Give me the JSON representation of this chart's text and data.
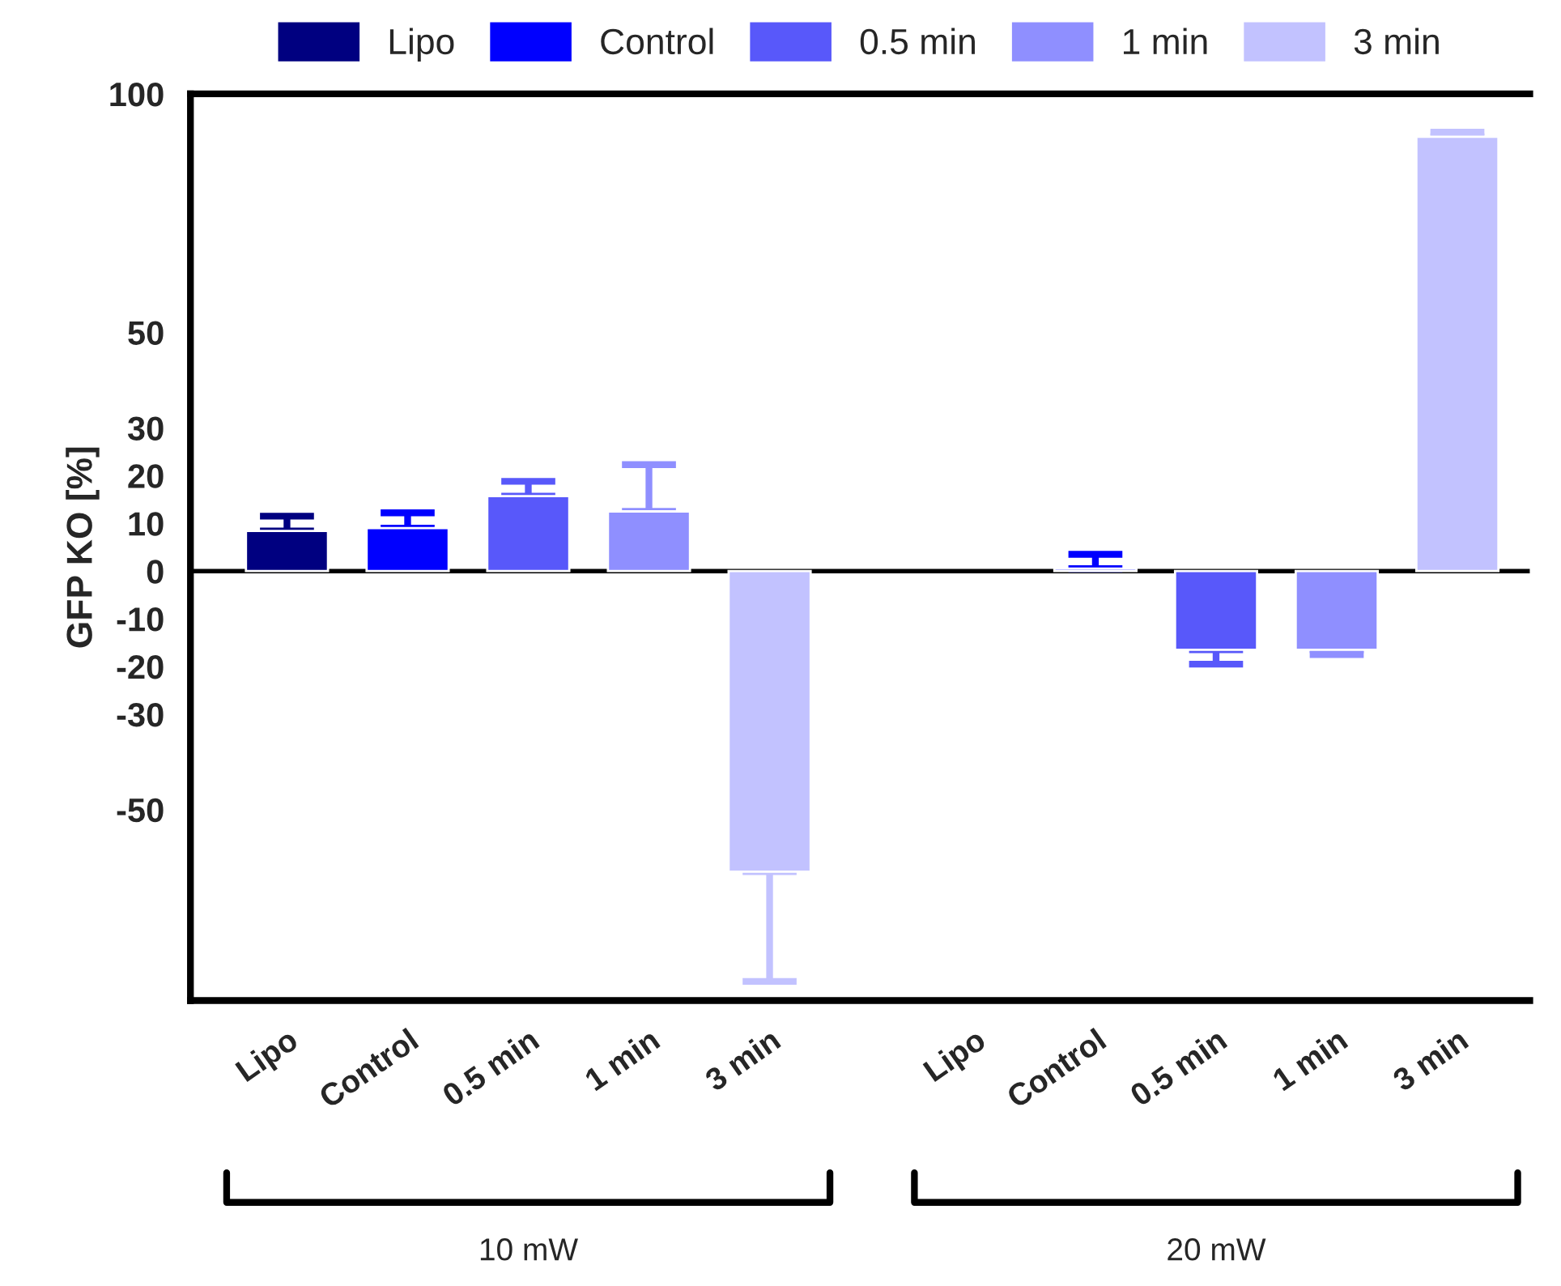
{
  "chart_data": {
    "type": "bar",
    "ylabel": "GFP KO [%]",
    "categories": [
      "Lipo",
      "Control",
      "0.5 min",
      "1 min",
      "3 min",
      "Lipo",
      "Control",
      "0.5 min",
      "1 min",
      "3 min"
    ],
    "series": [
      {
        "name": "Lipo",
        "color": "#000080",
        "values": [
          8.4,
          null,
          null,
          null,
          null,
          null,
          null,
          null,
          null,
          null
        ],
        "errors": [
          [
            8.4,
            11.5
          ],
          null,
          null,
          null,
          null,
          null,
          null,
          null,
          null,
          null
        ]
      },
      {
        "name": "Control",
        "color": "#0000ff",
        "values": [
          null,
          9,
          null,
          null,
          null,
          null,
          0.5,
          null,
          null,
          null
        ],
        "errors": [
          null,
          [
            9,
            12.2
          ],
          null,
          null,
          null,
          null,
          [
            0.5,
            3.5
          ],
          null,
          null,
          null
        ]
      },
      {
        "name": "0.5 min",
        "color": "#5858fa",
        "values": [
          null,
          null,
          15.7,
          null,
          null,
          null,
          null,
          -16.5,
          null,
          null
        ],
        "errors": [
          null,
          null,
          [
            15.7,
            18.8
          ],
          null,
          null,
          null,
          null,
          [
            -19.5,
            -16.5
          ],
          null,
          null
        ]
      },
      {
        "name": "1 min",
        "color": "#8f8fff",
        "values": [
          null,
          null,
          null,
          12.5,
          null,
          null,
          null,
          null,
          -16.5,
          null
        ],
        "errors": [
          null,
          null,
          null,
          [
            12.5,
            22.3
          ],
          null,
          null,
          null,
          null,
          [
            -17.5,
            -16.5
          ],
          null
        ]
      },
      {
        "name": "3 min",
        "color": "#c2c2ff",
        "values": [
          null,
          null,
          null,
          null,
          -63,
          null,
          null,
          null,
          null,
          91
        ],
        "errors": [
          null,
          null,
          null,
          null,
          [
            -86,
            -63
          ],
          null,
          null,
          null,
          null,
          [
            91,
            92
          ]
        ]
      }
    ],
    "ylim": [
      -90,
      100
    ],
    "yticks": [
      -50,
      -30,
      -20,
      -10,
      0,
      10,
      20,
      30,
      50,
      100
    ],
    "ref_lines": [
      {
        "axis": "y",
        "value": 0,
        "color": "#000000"
      }
    ],
    "annotations": [
      "10 mW",
      "20 mW"
    ],
    "legend": "top"
  }
}
